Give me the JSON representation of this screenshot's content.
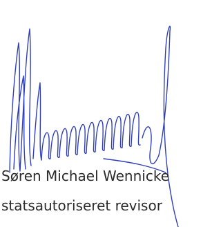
{
  "signature_block": {
    "name": "Søren Michael Wennicke",
    "title": "statsautoriseret revisor"
  }
}
